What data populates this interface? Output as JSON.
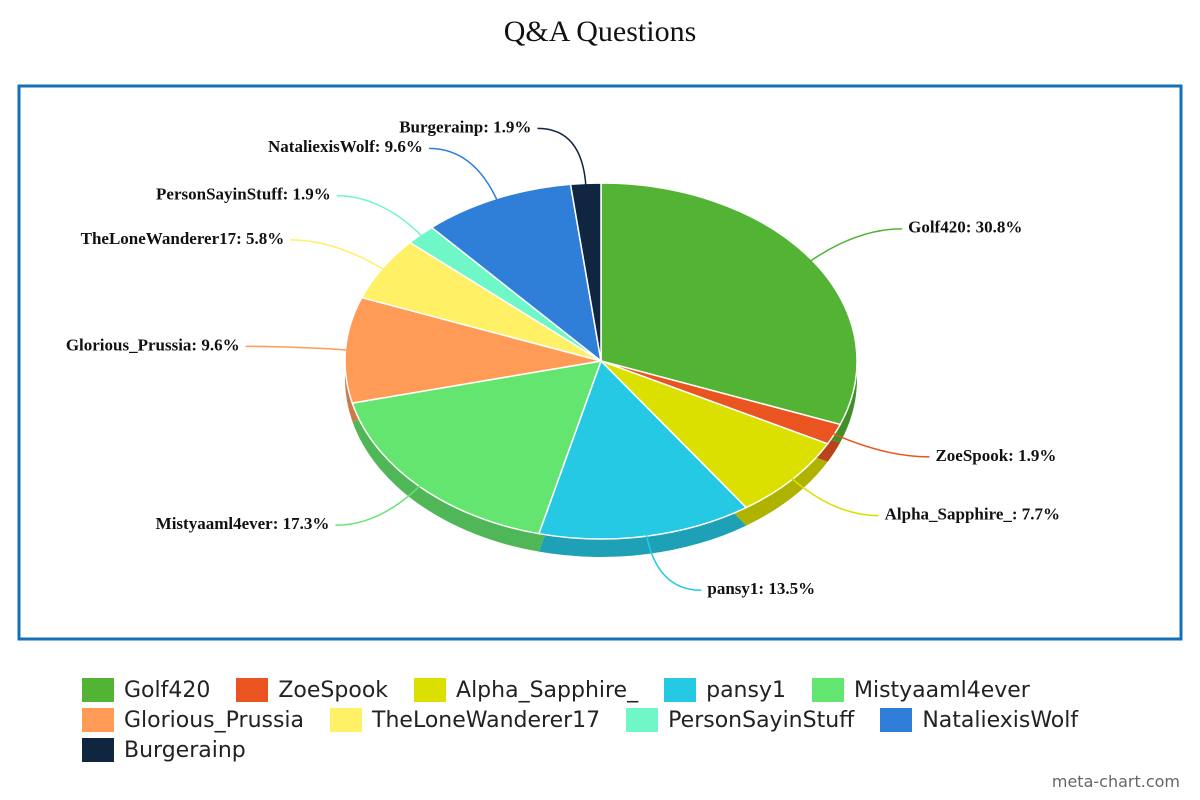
{
  "chart_data": {
    "type": "pie",
    "title": "Q&A Questions",
    "categories": [
      "Golf420",
      "ZoeSpook",
      "Alpha_Sapphire_",
      "pansy1",
      "Mistyaaml4ever",
      "Glorious_Prussia",
      "TheLoneWanderer17",
      "PersonSayinStuff",
      "NataliexisWolf",
      "Burgerainp"
    ],
    "values": [
      30.8,
      1.9,
      7.7,
      13.5,
      17.3,
      9.6,
      5.8,
      1.9,
      9.6,
      1.9
    ],
    "value_labels": [
      "Golf420: 30.8%",
      "ZoeSpook: 1.9%",
      "Alpha_Sapphire_: 7.7%",
      "pansy1: 13.5%",
      "Mistyaaml4ever: 17.3%",
      "Glorious_Prussia: 9.6%",
      "TheLoneWanderer17: 5.8%",
      "PersonSayinStuff: 1.9%",
      "NataliexisWolf: 9.6%",
      "Burgerainp: 1.9%"
    ],
    "colors": [
      "#52b335",
      "#ea5420",
      "#dbe000",
      "#25c9e3",
      "#64e56f",
      "#ff9a57",
      "#fff066",
      "#6ff7c8",
      "#2f7fd9",
      "#0f2540"
    ],
    "source": "meta-chart.com"
  }
}
